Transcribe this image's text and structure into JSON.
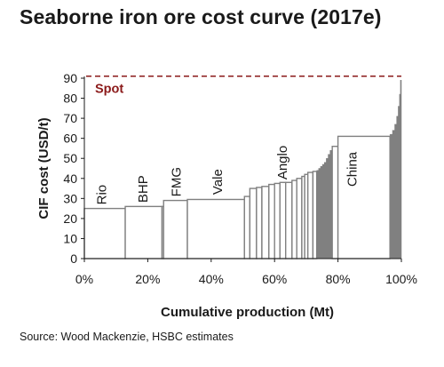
{
  "chart_data": {
    "type": "bar",
    "subtype": "cost-curve (variable-width bars)",
    "title": "Seaborne iron ore cost curve (2017e)",
    "xlabel": "Cumulative production (Mt)",
    "ylabel": "CIF cost (USD/t)",
    "xlim": [
      0,
      100
    ],
    "ylim": [
      0,
      90
    ],
    "x_unit": "% of cumulative production",
    "x_ticks": [
      "0%",
      "20%",
      "40%",
      "60%",
      "80%",
      "100%"
    ],
    "y_ticks": [
      "0",
      "10",
      "20",
      "30",
      "40",
      "50",
      "60",
      "70",
      "80",
      "90"
    ],
    "grid": false,
    "spot": {
      "label": "Spot",
      "value": 91,
      "color": "#8b1a1a",
      "style": "dashed"
    },
    "bar_colors": {
      "fill": "#ffffff",
      "edge": "#808080",
      "tail_fill": "#808080"
    },
    "segments": [
      {
        "x0": 0,
        "x1": 12.9,
        "y": 25,
        "label": "Rio"
      },
      {
        "x0": 12.9,
        "x1": 24.5,
        "y": 26
      },
      {
        "x0": 24.5,
        "x1": 25,
        "y": 26
      },
      {
        "x0": 25,
        "x1": 32.5,
        "y": 29,
        "label": "BHP"
      },
      {
        "x0": 32.5,
        "x1": 50.5,
        "y": 29.5,
        "label": "FMG"
      },
      {
        "x0": 50.5,
        "x1": 52.2,
        "y": 31,
        "label": "Vale"
      },
      {
        "x0": 52.2,
        "x1": 54.3,
        "y": 35
      },
      {
        "x0": 54.3,
        "x1": 56,
        "y": 35.5
      },
      {
        "x0": 56,
        "x1": 58.2,
        "y": 36
      },
      {
        "x0": 58.2,
        "x1": 60,
        "y": 37
      },
      {
        "x0": 60,
        "x1": 61.7,
        "y": 37.5
      },
      {
        "x0": 61.7,
        "x1": 63.5,
        "y": 38,
        "label": "Anglo"
      },
      {
        "x0": 63.5,
        "x1": 65.5,
        "y": 38
      },
      {
        "x0": 65.5,
        "x1": 67,
        "y": 39
      },
      {
        "x0": 67,
        "x1": 68.6,
        "y": 40
      },
      {
        "x0": 68.6,
        "x1": 69.5,
        "y": 41
      },
      {
        "x0": 69.5,
        "x1": 70.5,
        "y": 42
      },
      {
        "x0": 70.5,
        "x1": 72.1,
        "y": 43
      },
      {
        "x0": 72.1,
        "x1": 73.3,
        "y": 43.5
      },
      {
        "x0": 73.3,
        "x1": 73.9,
        "y": 44,
        "fill": "tail"
      },
      {
        "x0": 73.9,
        "x1": 74.5,
        "y": 45,
        "fill": "tail"
      },
      {
        "x0": 74.5,
        "x1": 75.1,
        "y": 46,
        "fill": "tail"
      },
      {
        "x0": 75.1,
        "x1": 75.7,
        "y": 47,
        "fill": "tail"
      },
      {
        "x0": 75.7,
        "x1": 76.3,
        "y": 48,
        "fill": "tail"
      },
      {
        "x0": 76.3,
        "x1": 76.9,
        "y": 50,
        "fill": "tail"
      },
      {
        "x0": 76.9,
        "x1": 77.5,
        "y": 52,
        "fill": "tail"
      },
      {
        "x0": 77.5,
        "x1": 78.2,
        "y": 54,
        "fill": "tail"
      },
      {
        "x0": 78.2,
        "x1": 80,
        "y": 56
      },
      {
        "x0": 80,
        "x1": 96.4,
        "y": 61,
        "label": "China"
      },
      {
        "x0": 96.4,
        "x1": 97.2,
        "y": 62,
        "fill": "tail"
      },
      {
        "x0": 97.2,
        "x1": 97.9,
        "y": 64,
        "fill": "tail"
      },
      {
        "x0": 97.9,
        "x1": 98.5,
        "y": 67,
        "fill": "tail"
      },
      {
        "x0": 98.5,
        "x1": 99,
        "y": 71,
        "fill": "tail"
      },
      {
        "x0": 99,
        "x1": 99.4,
        "y": 76,
        "fill": "tail"
      },
      {
        "x0": 99.4,
        "x1": 99.7,
        "y": 82,
        "fill": "tail"
      },
      {
        "x0": 99.7,
        "x1": 100,
        "y": 89,
        "fill": "tail"
      }
    ],
    "bar_labels": [
      {
        "text": "Rio",
        "x": 5.5
      },
      {
        "text": "BHP",
        "x": 18.5
      },
      {
        "text": "FMG",
        "x": 29
      },
      {
        "text": "Vale",
        "x": 42
      },
      {
        "text": "Anglo",
        "x": 62.5
      },
      {
        "text": "China",
        "x": 84.5
      }
    ]
  },
  "footer": {
    "source": "Source: Wood Mackenzie, HSBC estimates"
  }
}
